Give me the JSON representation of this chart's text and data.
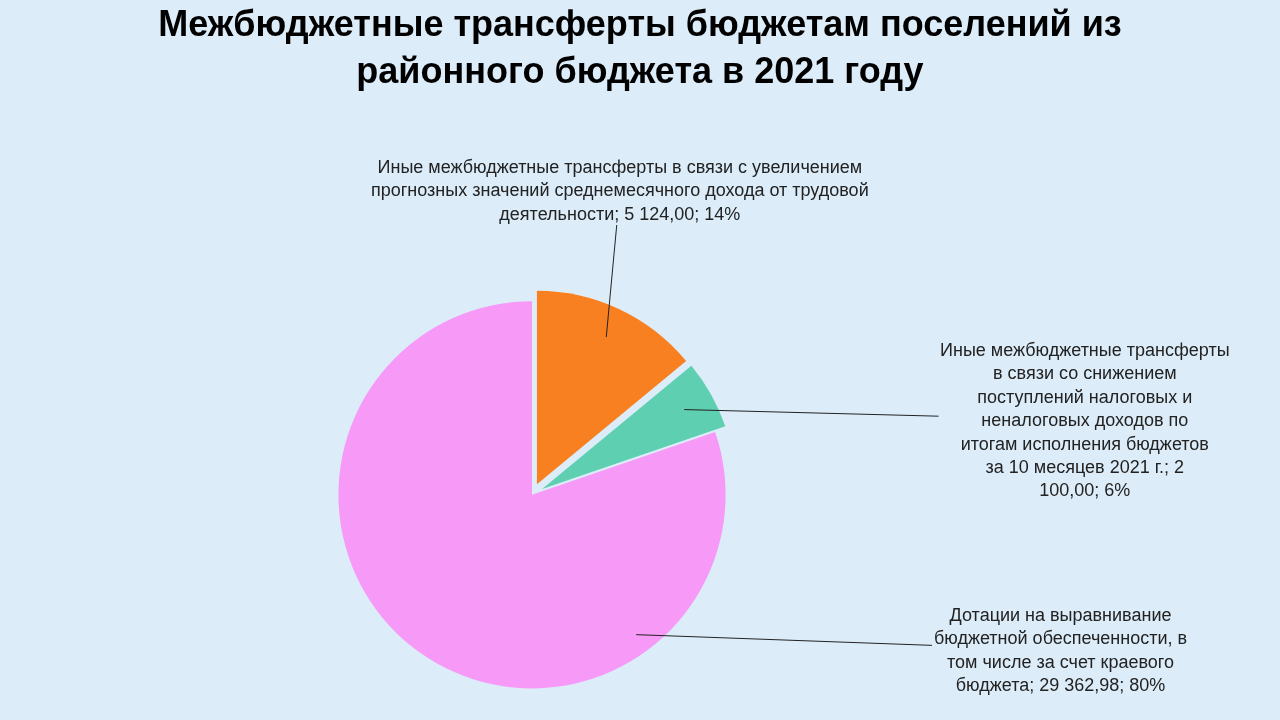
{
  "chart_data": {
    "type": "pie",
    "title": "Межбюджетные трансферты бюджетам поселений из районного бюджета в 2021 году",
    "categories": [
      "Иные межбюджетные трансферты в связи с увеличением прогнозных значений среднемесячного дохода от трудовой деятельности; 5 124,00; 14%",
      "Иные межбюджетные трансферты в связи со снижением поступлений налоговых и неналоговых доходов по итогам исполнения бюджетов за 10 месяцев 2021 г.; 2 100,00; 6%",
      "Дотации на выравнивание бюджетной обеспеченности, в том числе за счет краевого бюджета; 29 362,98; 80%"
    ],
    "values": [
      5124.0,
      2100.0,
      29362.98
    ],
    "colors": [
      "#f98020",
      "#5ecfb0",
      "#f799f7"
    ],
    "legend": false
  }
}
